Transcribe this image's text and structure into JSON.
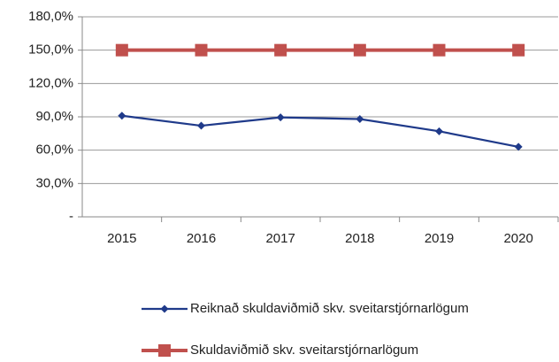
{
  "chart_data": {
    "type": "line",
    "categories": [
      "2015",
      "2016",
      "2017",
      "2018",
      "2019",
      "2020"
    ],
    "series": [
      {
        "name": "Reiknað skuldaviðmið skv. sveitarstjórnarlögum",
        "color": "#1f3a8a",
        "marker": "diamond",
        "values": [
          91,
          82,
          89.5,
          88,
          77,
          63
        ]
      },
      {
        "name": "Skuldaviðmið skv. sveitarstjórnarlögum",
        "color": "#c0504d",
        "marker": "square",
        "values": [
          150,
          150,
          150,
          150,
          150,
          150
        ]
      }
    ],
    "ylim": [
      0,
      180
    ],
    "yticks": [
      {
        "value": 0,
        "label": "-"
      },
      {
        "value": 30,
        "label": "30,0%"
      },
      {
        "value": 60,
        "label": "60,0%"
      },
      {
        "value": 90,
        "label": "90,0%"
      },
      {
        "value": 120,
        "label": "120,0%"
      },
      {
        "value": 150,
        "label": "150,0%"
      },
      {
        "value": 180,
        "label": "180,0%"
      }
    ],
    "grid": true,
    "legend": "bottom"
  }
}
